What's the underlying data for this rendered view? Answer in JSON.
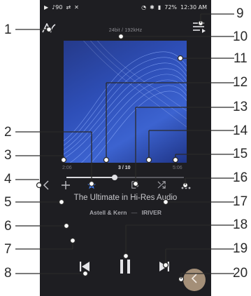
{
  "status_bar": {
    "volume": "90",
    "battery": "72%",
    "time": "12:30 AM"
  },
  "format": "24bit / 192kHz",
  "track": {
    "elapsed": "2:06",
    "position": "3 / 10",
    "total": "5:06",
    "progress": 0.41,
    "title": "The Ultimate in Hi-Res Audio",
    "artist": "Astell & Kern",
    "album": "IRIVER",
    "artist_album_separator": "—"
  },
  "icons": {
    "logo": "astell-kern-logo-icon",
    "queue": "playlist-queue-icon",
    "prev_track": "chevron-left-icon",
    "add": "plus-icon",
    "favorite": "star-icon",
    "repeat": "repeat-icon",
    "shuffle": "shuffle-icon",
    "more": "more-dots-icon",
    "previous": "skip-previous-icon",
    "pause": "pause-icon",
    "next": "skip-next-icon",
    "back": "back-chevron-icon"
  },
  "colors": {
    "favorite_active": "#3f7cf2",
    "fab": "#a48f78"
  },
  "callouts": [
    "1",
    "2",
    "3",
    "4",
    "5",
    "6",
    "7",
    "8",
    "9",
    "10",
    "11",
    "12",
    "13",
    "14",
    "15",
    "16",
    "17",
    "18",
    "19",
    "20"
  ]
}
